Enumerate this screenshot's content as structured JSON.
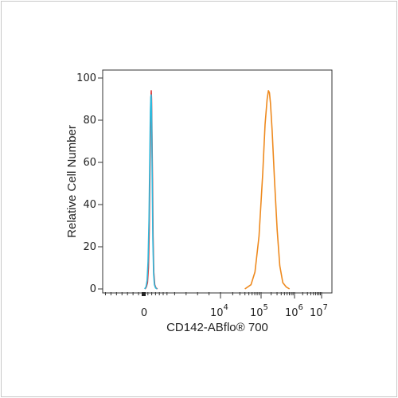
{
  "chart_data": {
    "type": "line",
    "xlabel": "CD142-ABflo® 700",
    "ylabel": "Relative Cell Number",
    "ylim": [
      0,
      100
    ],
    "y_ticks": [
      "0",
      "20",
      "40",
      "60",
      "80",
      "100"
    ],
    "x_tick_labels": [
      {
        "base": "0",
        "exp": ""
      },
      {
        "base": "10",
        "exp": "4"
      },
      {
        "base": "10",
        "exp": "5"
      },
      {
        "base": "10",
        "exp": "6"
      },
      {
        "base": "10",
        "exp": "7"
      }
    ],
    "grid": false,
    "series": [
      {
        "color": "#d93a3a",
        "x": [
          0.05,
          0.12,
          0.18,
          0.23,
          0.27,
          0.31,
          0.345,
          0.36,
          0.375,
          0.39,
          0.41,
          0.44,
          0.47,
          0.51,
          0.56,
          0.62,
          0.7
        ],
        "y": [
          0,
          1,
          3,
          10,
          28,
          55,
          80,
          90,
          94,
          90,
          78,
          52,
          25,
          8,
          2,
          0.5,
          0
        ]
      },
      {
        "color": "#2fb9dc",
        "x": [
          0.03,
          0.1,
          0.16,
          0.21,
          0.26,
          0.3,
          0.33,
          0.355,
          0.37,
          0.385,
          0.405,
          0.43,
          0.46,
          0.5,
          0.54,
          0.6,
          0.68
        ],
        "y": [
          0,
          1,
          4,
          13,
          33,
          62,
          84,
          91,
          92,
          89,
          76,
          50,
          24,
          7,
          2,
          0.5,
          0
        ]
      },
      {
        "color": "#ee8a1f",
        "x": [
          4.6,
          4.75,
          4.85,
          4.95,
          5.05,
          5.12,
          5.18,
          5.22,
          5.25,
          5.28,
          5.33,
          5.4,
          5.48,
          5.56,
          5.65,
          5.75,
          5.85
        ],
        "y": [
          0,
          2,
          8,
          25,
          55,
          78,
          90,
          94,
          93,
          88,
          75,
          52,
          28,
          11,
          3,
          1,
          0
        ]
      }
    ]
  }
}
